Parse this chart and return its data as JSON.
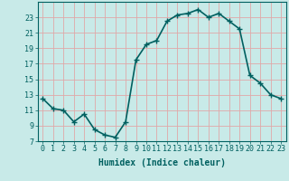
{
  "x": [
    0,
    1,
    2,
    3,
    4,
    5,
    6,
    7,
    8,
    9,
    10,
    11,
    12,
    13,
    14,
    15,
    16,
    17,
    18,
    19,
    20,
    21,
    22,
    23
  ],
  "y": [
    12.5,
    11.2,
    11.0,
    9.5,
    10.5,
    8.5,
    7.8,
    7.5,
    9.5,
    17.5,
    19.5,
    20.0,
    22.5,
    23.3,
    23.5,
    24.0,
    23.0,
    23.5,
    22.5,
    21.5,
    15.5,
    14.5,
    13.0,
    12.5
  ],
  "line_color": "#006060",
  "marker": "+",
  "marker_size": 4,
  "bg_color": "#c8eae8",
  "grid_color": "#e0a8a8",
  "xlabel": "Humidex (Indice chaleur)",
  "ylim": [
    7,
    25
  ],
  "xlim": [
    -0.5,
    23.5
  ],
  "yticks": [
    7,
    9,
    11,
    13,
    15,
    17,
    19,
    21,
    23
  ],
  "xticks": [
    0,
    1,
    2,
    3,
    4,
    5,
    6,
    7,
    8,
    9,
    10,
    11,
    12,
    13,
    14,
    15,
    16,
    17,
    18,
    19,
    20,
    21,
    22,
    23
  ],
  "tick_color": "#006060",
  "label_fontsize": 6,
  "xlabel_fontsize": 7,
  "line_width": 1.2,
  "marker_color": "#006060"
}
